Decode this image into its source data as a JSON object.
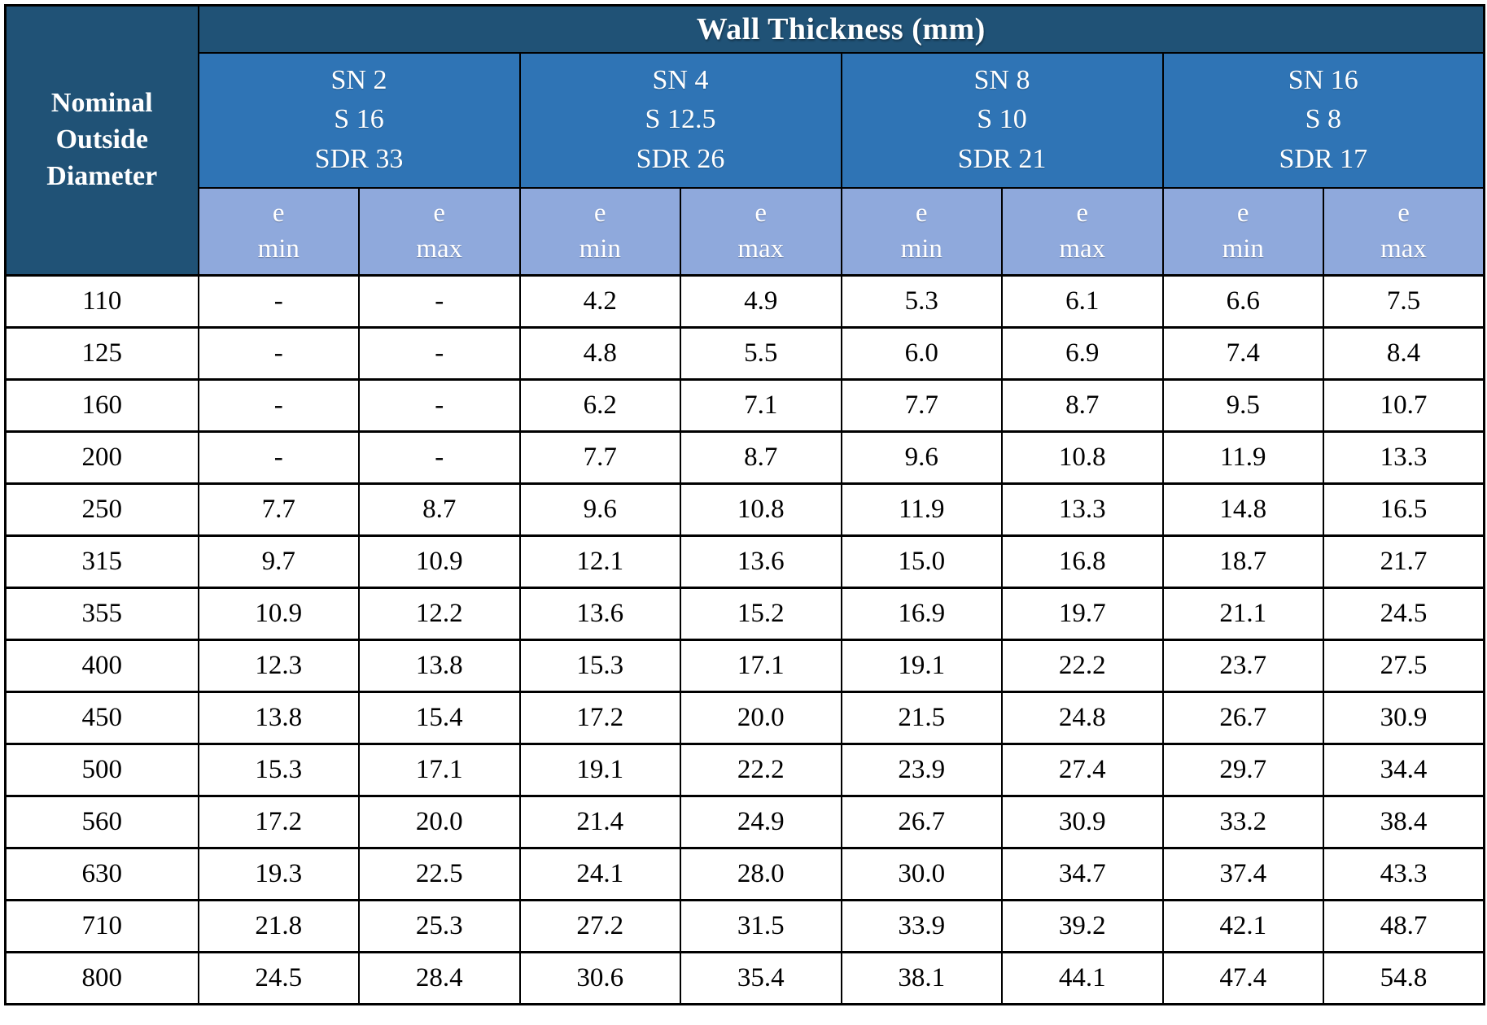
{
  "table": {
    "main_header": "Wall Thickness (mm)",
    "corner_header_lines": [
      "Nominal",
      "Outside",
      "Diameter"
    ],
    "groups": [
      {
        "lines": [
          "SN 2",
          "S 16",
          "SDR 33"
        ]
      },
      {
        "lines": [
          "SN 4",
          "S 12.5",
          "SDR 26"
        ]
      },
      {
        "lines": [
          "SN 8",
          "S 10",
          "SDR 21"
        ]
      },
      {
        "lines": [
          "SN 16",
          "S 8",
          "SDR 17"
        ]
      }
    ],
    "e_label": "e",
    "min_label": "min",
    "max_label": "max",
    "rows": [
      {
        "diameter": "110",
        "values": [
          "-",
          "-",
          "4.2",
          "4.9",
          "5.3",
          "6.1",
          "6.6",
          "7.5"
        ]
      },
      {
        "diameter": "125",
        "values": [
          "-",
          "-",
          "4.8",
          "5.5",
          "6.0",
          "6.9",
          "7.4",
          "8.4"
        ]
      },
      {
        "diameter": "160",
        "values": [
          "-",
          "-",
          "6.2",
          "7.1",
          "7.7",
          "8.7",
          "9.5",
          "10.7"
        ]
      },
      {
        "diameter": "200",
        "values": [
          "-",
          "-",
          "7.7",
          "8.7",
          "9.6",
          "10.8",
          "11.9",
          "13.3"
        ]
      },
      {
        "diameter": "250",
        "values": [
          "7.7",
          "8.7",
          "9.6",
          "10.8",
          "11.9",
          "13.3",
          "14.8",
          "16.5"
        ]
      },
      {
        "diameter": "315",
        "values": [
          "9.7",
          "10.9",
          "12.1",
          "13.6",
          "15.0",
          "16.8",
          "18.7",
          "21.7"
        ]
      },
      {
        "diameter": "355",
        "values": [
          "10.9",
          "12.2",
          "13.6",
          "15.2",
          "16.9",
          "19.7",
          "21.1",
          "24.5"
        ]
      },
      {
        "diameter": "400",
        "values": [
          "12.3",
          "13.8",
          "15.3",
          "17.1",
          "19.1",
          "22.2",
          "23.7",
          "27.5"
        ]
      },
      {
        "diameter": "450",
        "values": [
          "13.8",
          "15.4",
          "17.2",
          "20.0",
          "21.5",
          "24.8",
          "26.7",
          "30.9"
        ]
      },
      {
        "diameter": "500",
        "values": [
          "15.3",
          "17.1",
          "19.1",
          "22.2",
          "23.9",
          "27.4",
          "29.7",
          "34.4"
        ]
      },
      {
        "diameter": "560",
        "values": [
          "17.2",
          "20.0",
          "21.4",
          "24.9",
          "26.7",
          "30.9",
          "33.2",
          "38.4"
        ]
      },
      {
        "diameter": "630",
        "values": [
          "19.3",
          "22.5",
          "24.1",
          "28.0",
          "30.0",
          "34.7",
          "37.4",
          "43.3"
        ]
      },
      {
        "diameter": "710",
        "values": [
          "21.8",
          "25.3",
          "27.2",
          "31.5",
          "33.9",
          "39.2",
          "42.1",
          "48.7"
        ]
      },
      {
        "diameter": "800",
        "values": [
          "24.5",
          "28.4",
          "30.6",
          "35.4",
          "38.1",
          "44.1",
          "47.4",
          "54.8"
        ]
      }
    ],
    "colors": {
      "header_dark": "#205276",
      "header_medium": "#2F74B5",
      "header_light": "#8FA9DC",
      "grid": "#000000",
      "data_bg": "#FFFFFF"
    }
  }
}
